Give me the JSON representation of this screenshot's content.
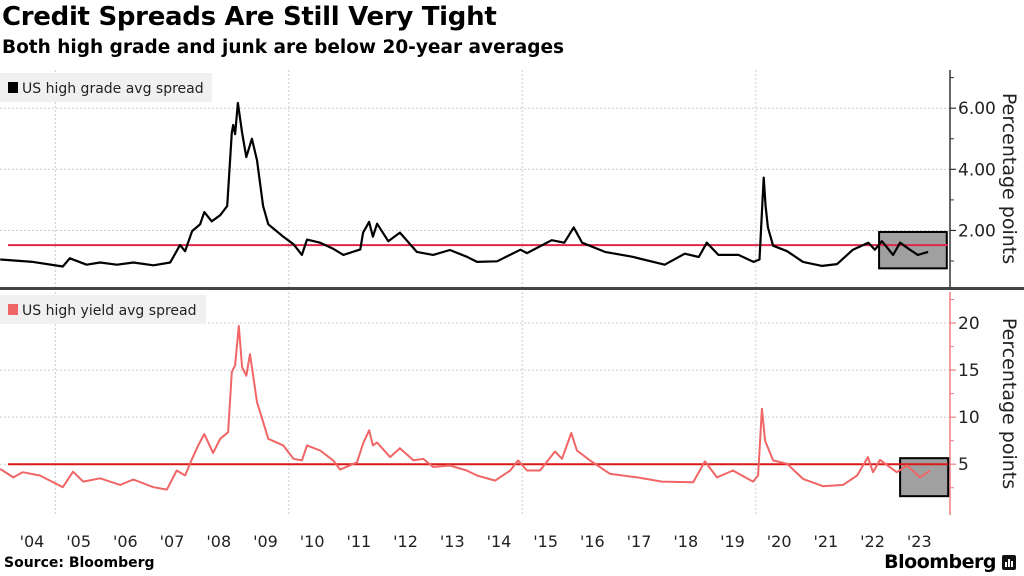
{
  "title": "Credit Spreads Are Still Very Tight",
  "subtitle": "Both high grade and junk are below 20-year averages",
  "source": "Source: Bloomberg",
  "brand": "Bloomberg",
  "chart_data": [
    {
      "type": "line",
      "legend": "US high grade avg spread",
      "legend_placement": "top-left",
      "ylabel": "Percentage points",
      "ylim": [
        0.15,
        7.25
      ],
      "xlim": [
        2003.82,
        2024.2
      ],
      "yticks": [
        2,
        4,
        6
      ],
      "ytick_labels": [
        "2.00",
        "4.00",
        "6.00"
      ],
      "grid": true,
      "line_color": "#000000",
      "average": 1.52,
      "average_color": "#e0284f",
      "highlight_box": {
        "x": [
          2022.64,
          2024.09
        ],
        "y": [
          0.76,
          1.95
        ],
        "fill": "#a0a0a0"
      },
      "series": [
        {
          "x": [
            2003.82,
            2004.52,
            2005.16,
            2005.31,
            2005.67,
            2005.96,
            2006.32,
            2006.67,
            2007.1,
            2007.46,
            2007.67,
            2007.78,
            2007.93,
            2008.1,
            2008.19,
            2008.35,
            2008.53,
            2008.68,
            2008.78,
            2008.81,
            2008.85,
            2008.91,
            2009.0,
            2009.09,
            2009.21,
            2009.32,
            2009.45,
            2009.56,
            2009.88,
            2010.1,
            2010.28,
            2010.39,
            2010.67,
            2010.95,
            2011.17,
            2011.53,
            2011.59,
            2011.72,
            2011.8,
            2011.89,
            2012.13,
            2012.38,
            2012.74,
            2013.09,
            2013.45,
            2013.81,
            2014.03,
            2014.46,
            2014.96,
            2015.1,
            2015.63,
            2015.9,
            2016.1,
            2016.28,
            2016.77,
            2017.35,
            2018.05,
            2018.48,
            2018.78,
            2018.95,
            2019.2,
            2019.63,
            2019.95,
            2020.08,
            2020.17,
            2020.21,
            2020.26,
            2020.37,
            2020.67,
            2021.01,
            2021.42,
            2021.74,
            2022.08,
            2022.41,
            2022.55,
            2022.7,
            2022.94,
            2023.09,
            2023.3,
            2023.47,
            2023.69
          ],
          "y": [
            1.05,
            0.97,
            0.82,
            1.09,
            0.88,
            0.95,
            0.88,
            0.95,
            0.86,
            0.95,
            1.52,
            1.32,
            1.98,
            2.2,
            2.6,
            2.3,
            2.5,
            2.8,
            5.2,
            5.45,
            5.15,
            6.17,
            5.2,
            4.4,
            5.0,
            4.3,
            2.8,
            2.2,
            1.8,
            1.55,
            1.2,
            1.7,
            1.6,
            1.4,
            1.2,
            1.38,
            1.93,
            2.28,
            1.8,
            2.22,
            1.65,
            1.93,
            1.3,
            1.2,
            1.36,
            1.14,
            0.97,
            0.99,
            1.37,
            1.26,
            1.68,
            1.6,
            2.1,
            1.6,
            1.3,
            1.14,
            0.88,
            1.24,
            1.13,
            1.6,
            1.2,
            1.2,
            0.97,
            1.05,
            3.73,
            2.8,
            2.1,
            1.5,
            1.32,
            0.97,
            0.84,
            0.9,
            1.37,
            1.6,
            1.37,
            1.65,
            1.2,
            1.6,
            1.37,
            1.2,
            1.3
          ]
        }
      ]
    },
    {
      "type": "line",
      "legend": "US high yield avg spread",
      "legend_placement": "top-left",
      "ylabel": "Percentage points",
      "ylim": [
        -0.4,
        23.3
      ],
      "xlim": [
        2003.82,
        2024.2
      ],
      "yticks": [
        5,
        10,
        15,
        20
      ],
      "ytick_labels": [
        "5",
        "10",
        "15",
        "20"
      ],
      "grid": true,
      "line_color": "#f06666",
      "average": 5.0,
      "average_color": "#d91a1a",
      "highlight_box": {
        "x": [
          2023.09,
          2024.12
        ],
        "y": [
          1.6,
          5.64
        ],
        "fill": "#a0a0a0"
      },
      "series": [
        {
          "x": [
            2003.82,
            2004.1,
            2004.3,
            2004.67,
            2005.16,
            2005.38,
            2005.6,
            2005.96,
            2006.39,
            2006.67,
            2007.1,
            2007.39,
            2007.6,
            2007.78,
            2007.93,
            2008.06,
            2008.19,
            2008.38,
            2008.53,
            2008.7,
            2008.78,
            2008.85,
            2008.93,
            2009.0,
            2009.09,
            2009.17,
            2009.32,
            2009.45,
            2009.56,
            2009.88,
            2010.1,
            2010.28,
            2010.39,
            2010.67,
            2010.95,
            2011.1,
            2011.46,
            2011.59,
            2011.72,
            2011.8,
            2011.89,
            2012.17,
            2012.38,
            2012.67,
            2012.88,
            2013.09,
            2013.45,
            2013.81,
            2014.03,
            2014.42,
            2014.74,
            2014.91,
            2015.1,
            2015.38,
            2015.7,
            2015.85,
            2016.05,
            2016.17,
            2016.45,
            2016.88,
            2017.46,
            2017.99,
            2018.66,
            2018.91,
            2019.17,
            2019.51,
            2019.94,
            2020.05,
            2020.13,
            2020.2,
            2020.37,
            2020.67,
            2021.01,
            2021.44,
            2021.87,
            2022.17,
            2022.4,
            2022.51,
            2022.66,
            2023.02,
            2023.24,
            2023.52,
            2023.73
          ],
          "y": [
            4.5,
            3.6,
            4.15,
            3.8,
            2.55,
            4.2,
            3.15,
            3.5,
            2.8,
            3.37,
            2.55,
            2.3,
            4.33,
            3.8,
            5.57,
            7.0,
            8.2,
            6.2,
            7.7,
            8.4,
            14.8,
            15.5,
            19.7,
            15.3,
            14.4,
            16.7,
            11.6,
            9.5,
            7.7,
            7.0,
            5.57,
            5.4,
            7.0,
            6.45,
            5.4,
            4.43,
            5.2,
            7.2,
            8.6,
            7.0,
            7.3,
            5.75,
            6.7,
            5.4,
            5.57,
            4.7,
            4.86,
            4.33,
            3.8,
            3.26,
            4.33,
            5.4,
            4.33,
            4.33,
            6.35,
            5.57,
            8.33,
            6.45,
            5.4,
            3.97,
            3.6,
            3.15,
            3.08,
            5.3,
            3.6,
            4.33,
            3.15,
            3.8,
            10.9,
            7.5,
            5.4,
            5.04,
            3.44,
            2.66,
            2.8,
            3.8,
            5.75,
            4.15,
            5.46,
            4.15,
            4.86,
            3.6,
            4.33
          ]
        }
      ]
    }
  ],
  "x_axis": {
    "tick_labels": [
      "'04",
      "'05",
      "'06",
      "'07",
      "'08",
      "'09",
      "'10",
      "'11",
      "'12",
      "'13",
      "'14",
      "'15",
      "'16",
      "'17",
      "'18",
      "'19",
      "'20",
      "'21",
      "'22",
      "'23"
    ]
  }
}
